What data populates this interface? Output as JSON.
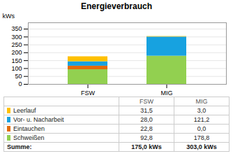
{
  "chart_data": {
    "type": "bar",
    "stacked": true,
    "title": "Energieverbrauch",
    "ylabel": "kWs",
    "categories": [
      "FSW",
      "MIG"
    ],
    "series": [
      {
        "name": "Schweißen",
        "values": [
          92.8,
          178.8
        ],
        "color": "#92d050"
      },
      {
        "name": "Eintauchen",
        "values": [
          22.8,
          0.0
        ],
        "color": "#e36c09"
      },
      {
        "name": "Vor- u. Nacharbeit",
        "values": [
          28.0,
          121.2
        ],
        "color": "#17a2e0"
      },
      {
        "name": "Leerlauf",
        "values": [
          31.5,
          3.0
        ],
        "color": "#ffc000"
      }
    ],
    "ylim": [
      0,
      390
    ],
    "yticks": [
      0,
      50,
      100,
      150,
      200,
      250,
      300,
      350
    ],
    "grid": true,
    "table": {
      "rows": [
        {
          "label": "Leerlauf",
          "color": "#ffc000",
          "cells": [
            "31,5",
            "3,0"
          ]
        },
        {
          "label": "Vor- u. Nacharbeit",
          "color": "#17a2e0",
          "cells": [
            "28,0",
            "121,2"
          ]
        },
        {
          "label": "Eintauchen",
          "color": "#e36c09",
          "cells": [
            "22,8",
            "0,0"
          ]
        },
        {
          "label": "Schweißen",
          "color": "#92d050",
          "cells": [
            "92,8",
            "178,8"
          ]
        }
      ],
      "total_label": "Summe:",
      "total_cells": [
        "175,0 kWs",
        "303,0 kWs"
      ]
    }
  }
}
